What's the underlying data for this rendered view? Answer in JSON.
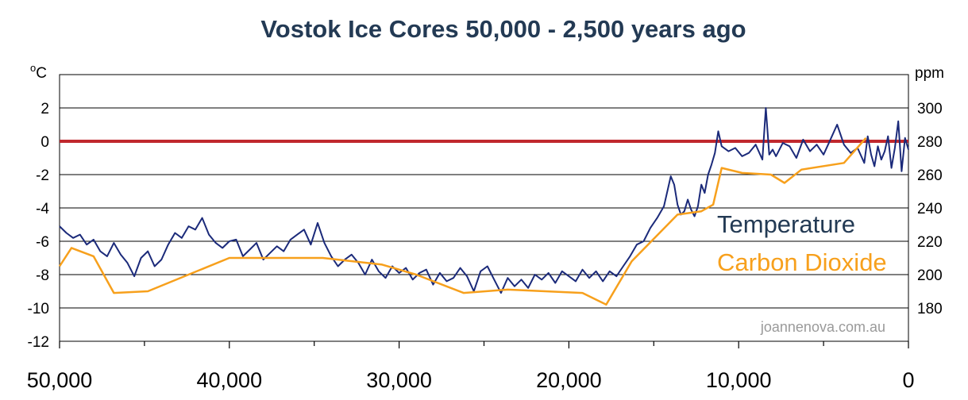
{
  "chart_data": {
    "type": "line",
    "title": "Vostok Ice Cores   50,000 - 2,500 years ago",
    "ylabel_left": "oC",
    "ylabel_right": "ppm",
    "x_direction": "reversed (years ago, 50,000 on left to 0 on right)",
    "xlim": [
      50000,
      0
    ],
    "ylim_left": [
      -12,
      4
    ],
    "ylim_right": [
      160,
      320
    ],
    "x_ticks": [
      {
        "value": 50000,
        "label": "50,000"
      },
      {
        "value": 40000,
        "label": "40,000"
      },
      {
        "value": 30000,
        "label": "30,000"
      },
      {
        "value": 20000,
        "label": "20,000"
      },
      {
        "value": 10000,
        "label": "10,000"
      },
      {
        "value": 0,
        "label": "0"
      }
    ],
    "y_ticks_left": [
      {
        "value": 2,
        "label": "2"
      },
      {
        "value": 0,
        "label": "0"
      },
      {
        "value": -2,
        "label": "-2"
      },
      {
        "value": -4,
        "label": "-4"
      },
      {
        "value": -6,
        "label": "-6"
      },
      {
        "value": -8,
        "label": "-8"
      },
      {
        "value": -10,
        "label": "-10"
      },
      {
        "value": -12,
        "label": "-12"
      }
    ],
    "y_ticks_right": [
      {
        "value": 300,
        "label": "300"
      },
      {
        "value": 280,
        "label": "280"
      },
      {
        "value": 260,
        "label": "260"
      },
      {
        "value": 240,
        "label": "240"
      },
      {
        "value": 220,
        "label": "220"
      },
      {
        "value": 200,
        "label": "200"
      },
      {
        "value": 180,
        "label": "180"
      }
    ],
    "grid": true,
    "reference_line": {
      "axis": "left",
      "value": 0,
      "color": "#c0282d"
    },
    "series": [
      {
        "name": "Temperature",
        "axis": "left",
        "color": "#1b2a7a",
        "x": [
          50000,
          49600,
          49200,
          48800,
          48400,
          48000,
          47600,
          47200,
          46800,
          46400,
          46000,
          45600,
          45200,
          44800,
          44400,
          44000,
          43600,
          43200,
          42800,
          42400,
          42000,
          41600,
          41200,
          40800,
          40400,
          40000,
          39600,
          39200,
          38800,
          38400,
          38000,
          37600,
          37200,
          36800,
          36400,
          36000,
          35600,
          35200,
          34800,
          34400,
          34000,
          33600,
          33200,
          32800,
          32400,
          32000,
          31600,
          31200,
          30800,
          30400,
          30000,
          29600,
          29200,
          28800,
          28400,
          28000,
          27600,
          27200,
          26800,
          26400,
          26000,
          25600,
          25200,
          24800,
          24400,
          24000,
          23600,
          23200,
          22800,
          22400,
          22000,
          21600,
          21200,
          20800,
          20400,
          20000,
          19600,
          19200,
          18800,
          18400,
          18000,
          17600,
          17200,
          16800,
          16400,
          16000,
          15600,
          15200,
          14800,
          14400,
          14000,
          13800,
          13600,
          13400,
          13200,
          13000,
          12800,
          12600,
          12400,
          12200,
          12000,
          11800,
          11600,
          11400,
          11200,
          11000,
          10600,
          10200,
          9800,
          9400,
          9000,
          8600,
          8400,
          8200,
          8000,
          7800,
          7400,
          7000,
          6600,
          6200,
          5800,
          5400,
          5000,
          4600,
          4200,
          3800,
          3400,
          3000,
          2600,
          2400,
          2200,
          2000,
          1800,
          1600,
          1400,
          1200,
          1000,
          800,
          600,
          400,
          200,
          0
        ],
        "y": [
          -5.1,
          -5.5,
          -5.8,
          -5.6,
          -6.2,
          -5.9,
          -6.6,
          -6.9,
          -6.1,
          -6.8,
          -7.3,
          -8.1,
          -7.0,
          -6.6,
          -7.5,
          -7.1,
          -6.2,
          -5.5,
          -5.8,
          -5.1,
          -5.3,
          -4.6,
          -5.6,
          -6.1,
          -6.4,
          -6.0,
          -5.9,
          -6.9,
          -6.5,
          -6.1,
          -7.1,
          -6.7,
          -6.3,
          -6.6,
          -5.9,
          -5.6,
          -5.3,
          -6.2,
          -4.9,
          -6.1,
          -6.9,
          -7.5,
          -7.1,
          -6.8,
          -7.3,
          -8.0,
          -7.1,
          -7.8,
          -8.2,
          -7.5,
          -7.9,
          -7.6,
          -8.3,
          -7.9,
          -7.7,
          -8.6,
          -7.9,
          -8.4,
          -8.2,
          -7.6,
          -8.1,
          -9.0,
          -7.8,
          -7.5,
          -8.3,
          -9.1,
          -8.2,
          -8.7,
          -8.3,
          -8.8,
          -8.0,
          -8.3,
          -7.9,
          -8.5,
          -7.8,
          -8.1,
          -8.4,
          -7.7,
          -8.2,
          -7.8,
          -8.4,
          -7.8,
          -8.1,
          -7.5,
          -6.9,
          -6.2,
          -6.0,
          -5.2,
          -4.6,
          -3.9,
          -2.1,
          -2.6,
          -3.8,
          -4.4,
          -4.2,
          -3.5,
          -4.1,
          -4.5,
          -3.9,
          -2.6,
          -3.1,
          -2.0,
          -1.4,
          -0.7,
          0.6,
          -0.3,
          -0.6,
          -0.4,
          -0.9,
          -0.7,
          -0.2,
          -1.1,
          2.0,
          -0.8,
          -0.5,
          -0.9,
          -0.1,
          -0.3,
          -1.0,
          0.1,
          -0.6,
          -0.2,
          -0.8,
          0.1,
          1.0,
          -0.2,
          -0.7,
          -0.4,
          -1.3,
          0.3,
          -0.8,
          -1.5,
          -0.3,
          -1.1,
          -0.6,
          0.3,
          -1.6,
          -0.4,
          1.2,
          -1.8,
          0.2,
          -0.5
        ]
      },
      {
        "name": "Carbon Dioxide",
        "axis": "right",
        "color": "#f7a01c",
        "x": [
          50000,
          49300,
          48000,
          46800,
          44800,
          40000,
          34500,
          31000,
          29000,
          26200,
          23600,
          19200,
          17800,
          16300,
          13600,
          12200,
          11500,
          11000,
          9800,
          8100,
          7300,
          6300,
          3800,
          2500
        ],
        "y": [
          205,
          216,
          211,
          189,
          190,
          210,
          210,
          206,
          200,
          189,
          191,
          189,
          182,
          208,
          236,
          238,
          242,
          264,
          261,
          260,
          255,
          263,
          267,
          282
        ]
      }
    ],
    "legend": [
      {
        "label": "Temperature",
        "color": "#233a54"
      },
      {
        "label": "Carbon Dioxide",
        "color": "#f7a01c"
      }
    ],
    "legend_placement": "right, middle",
    "annotations": [
      "joannenova.com.au"
    ]
  }
}
